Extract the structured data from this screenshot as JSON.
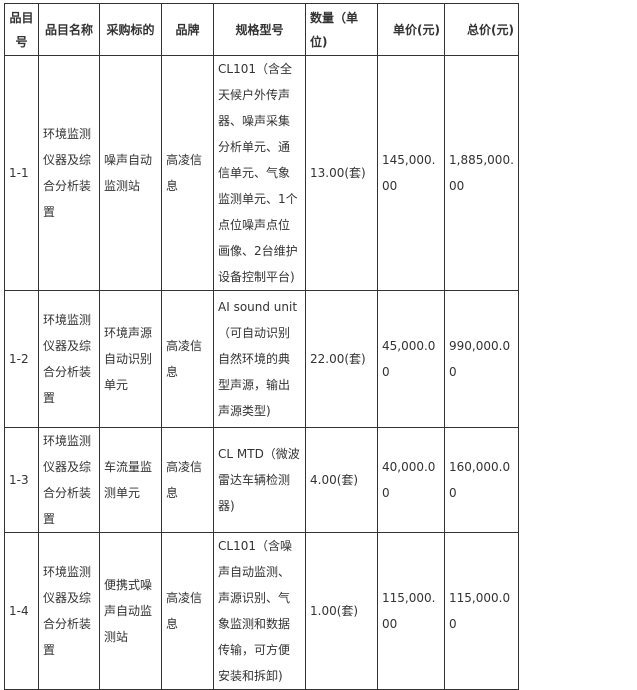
{
  "headers": [
    "品目号",
    "品目名称",
    "采购标的",
    "品牌",
    "规格型号",
    "数量（单位)",
    "单价(元)",
    "总价(元)"
  ],
  "rows": [
    {
      "id": "1-1",
      "name": "环境监测仪器及综合分析装置",
      "item": "噪声自动监测站",
      "brand": "高凌信息",
      "spec": "CL101（含全天候户外传声器、噪声采集分析单元、通信单元、气象监测单元、1个点位噪声点位画像、2台维护设备控制平台)",
      "qty": "13.00(套)",
      "unit_price": "145,000.00",
      "total": "1,885,000.00"
    },
    {
      "id": "1-2",
      "name": "环境监测仪器及综合分析装置",
      "item": "环境声源自动识别单元",
      "brand": "高凌信息",
      "spec": "AI sound unit（可自动识别自然环境的典型声源，输出声源类型)",
      "qty": "22.00(套)",
      "unit_price": "45,000.00",
      "total": "990,000.00"
    },
    {
      "id": "1-3",
      "name": "环境监测仪器及综合分析装置",
      "item": "车流量监测单元",
      "brand": "高凌信息",
      "spec": "CL MTD（微波雷达车辆检测器)",
      "qty": "4.00(套)",
      "unit_price": "40,000.00",
      "total": "160,000.00"
    },
    {
      "id": "1-4",
      "name": "环境监测仪器及综合分析装置",
      "item": "便携式噪声自动监测站",
      "brand": "高凌信息",
      "spec": "CL101（含噪声自动监测、声源识别、气象监测和数据传输，可方便安装和拆卸)",
      "qty": "1.00(套)",
      "unit_price": "115,000.00",
      "total": "115,000.00"
    }
  ]
}
